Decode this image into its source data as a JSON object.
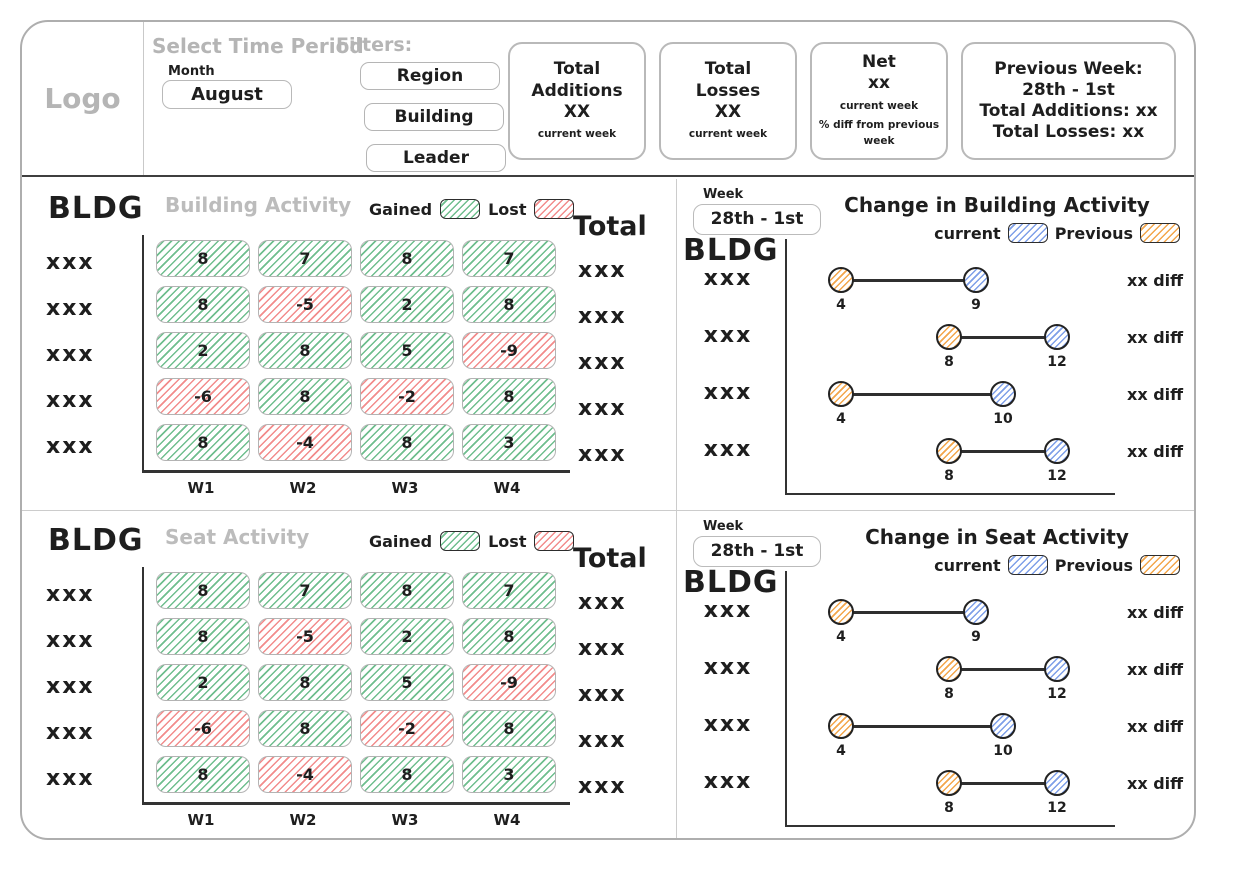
{
  "header": {
    "logo": "Logo",
    "time_period": {
      "label": "Select Time Period",
      "month_label": "Month",
      "month_value": "August"
    },
    "filters": {
      "label": "Filters:",
      "buttons": [
        "Region",
        "Building",
        "Leader"
      ]
    },
    "cards": {
      "additions": {
        "title1": "Total",
        "title2": "Additions",
        "value": "XX",
        "sub": "current week"
      },
      "losses": {
        "title1": "Total",
        "title2": "Losses",
        "value": "XX",
        "sub": "current week"
      },
      "net": {
        "title": "Net",
        "value": "xx",
        "sub1": "current week",
        "sub2": "% diff from previous week"
      },
      "previous_week": {
        "line1": "Previous Week:",
        "line2": "28th - 1st",
        "line3": "Total Additions: xx",
        "line4": "Total Losses: xx"
      }
    }
  },
  "chart_data": [
    {
      "type": "heatmap",
      "title": "Building Activity",
      "y_axis_label": "BLDG",
      "total_label": "Total",
      "legend": [
        {
          "label": "Gained",
          "color": "#6fbe8e"
        },
        {
          "label": "Lost",
          "color": "#f28c8c"
        }
      ],
      "categories": [
        "W1",
        "W2",
        "W3",
        "W4"
      ],
      "row_labels": [
        "xxx",
        "xxx",
        "xxx",
        "xxx",
        "xxx"
      ],
      "rows": [
        [
          8,
          7,
          8,
          7
        ],
        [
          8,
          -5,
          2,
          8
        ],
        [
          2,
          8,
          5,
          -9
        ],
        [
          -6,
          8,
          -2,
          8
        ],
        [
          8,
          -4,
          8,
          3
        ]
      ],
      "totals": [
        "xxx",
        "xxx",
        "xxx",
        "xxx",
        "xxx"
      ]
    },
    {
      "type": "dumbbell",
      "title": "Change in Building Activity",
      "week_label": "Week",
      "week_value": "28th - 1st",
      "y_axis_label": "BLDG",
      "legend": [
        {
          "label": "current",
          "color": "#7e9fe8"
        },
        {
          "label": "Previous",
          "color": "#f3a64b"
        }
      ],
      "row_labels": [
        "xxx",
        "xxx",
        "xxx",
        "xxx"
      ],
      "rows": [
        {
          "previous": 4,
          "current": 9,
          "diff": "xx diff"
        },
        {
          "previous": 8,
          "current": 12,
          "diff": "xx diff"
        },
        {
          "previous": 4,
          "current": 10,
          "diff": "xx diff"
        },
        {
          "previous": 8,
          "current": 12,
          "diff": "xx diff"
        }
      ]
    },
    {
      "type": "heatmap",
      "title": "Seat Activity",
      "y_axis_label": "BLDG",
      "total_label": "Total",
      "legend": [
        {
          "label": "Gained",
          "color": "#6fbe8e"
        },
        {
          "label": "Lost",
          "color": "#f28c8c"
        }
      ],
      "categories": [
        "W1",
        "W2",
        "W3",
        "W4"
      ],
      "row_labels": [
        "xxx",
        "xxx",
        "xxx",
        "xxx",
        "xxx"
      ],
      "rows": [
        [
          8,
          7,
          8,
          7
        ],
        [
          8,
          -5,
          2,
          8
        ],
        [
          2,
          8,
          5,
          -9
        ],
        [
          -6,
          8,
          -2,
          8
        ],
        [
          8,
          -4,
          8,
          3
        ]
      ],
      "totals": [
        "xxx",
        "xxx",
        "xxx",
        "xxx",
        "xxx"
      ]
    },
    {
      "type": "dumbbell",
      "title": "Change in Seat Activity",
      "week_label": "Week",
      "week_value": "28th - 1st",
      "y_axis_label": "BLDG",
      "legend": [
        {
          "label": "current",
          "color": "#7e9fe8"
        },
        {
          "label": "Previous",
          "color": "#f3a64b"
        }
      ],
      "row_labels": [
        "xxx",
        "xxx",
        "xxx",
        "xxx"
      ],
      "rows": [
        {
          "previous": 4,
          "current": 9,
          "diff": "xx diff"
        },
        {
          "previous": 8,
          "current": 12,
          "diff": "xx diff"
        },
        {
          "previous": 4,
          "current": 10,
          "diff": "xx diff"
        },
        {
          "previous": 8,
          "current": 12,
          "diff": "xx diff"
        }
      ]
    }
  ]
}
